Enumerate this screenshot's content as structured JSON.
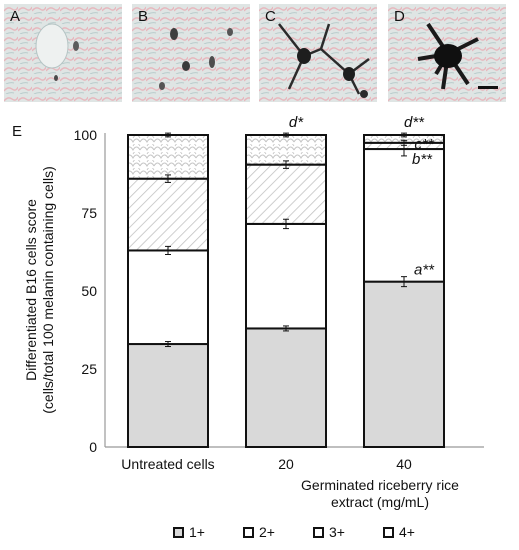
{
  "panels": [
    {
      "label": "A",
      "color": "#d9dede"
    },
    {
      "label": "B",
      "color": "#d7dad8"
    },
    {
      "label": "C",
      "color": "#d4d9d8"
    },
    {
      "label": "D",
      "color": "#dcdfdf"
    }
  ],
  "chart_data": {
    "type": "bar",
    "stacked": true,
    "panel_label": "E",
    "ylabel_line1": "Differentiated B16 cells score",
    "ylabel_line2": "(cells/total 100 melanin containing cells)",
    "xlabel": "Germinated riceberry rice extract (mg/mL)",
    "categories": [
      "Untreated cells",
      "20",
      "40"
    ],
    "ylim": [
      0,
      100
    ],
    "yticks": [
      0,
      25,
      50,
      75,
      100
    ],
    "series": [
      {
        "name": "1+",
        "color": "#d9d9d9",
        "pattern": "solid",
        "values": [
          33,
          38,
          53
        ],
        "errors": [
          0.8,
          0.8,
          1.6
        ]
      },
      {
        "name": "2+",
        "color": "#ffffff",
        "pattern": "none",
        "values": [
          30,
          33.5,
          42.5
        ],
        "errors": [
          1.3,
          1.5,
          2.2
        ]
      },
      {
        "name": "3+",
        "color": "#ffffff",
        "pattern": "diagonal",
        "values": [
          23,
          19,
          2
        ],
        "errors": [
          1.2,
          1.2,
          0.8
        ]
      },
      {
        "name": "4+",
        "color": "#ffffff",
        "pattern": "scale",
        "values": [
          14,
          9.5,
          2.5
        ],
        "errors": [
          0.6,
          0.6,
          0.6
        ]
      }
    ],
    "annotations": [
      {
        "category": 2,
        "series": 0,
        "text": "a**"
      },
      {
        "category": 2,
        "series": 1,
        "text": "b**"
      },
      {
        "category": 2,
        "series": 2,
        "text": "c**"
      },
      {
        "category": 1,
        "series": 3,
        "text": "d*"
      },
      {
        "category": 2,
        "series": 3,
        "text": "d**"
      }
    ],
    "legend_position": "bottom"
  }
}
